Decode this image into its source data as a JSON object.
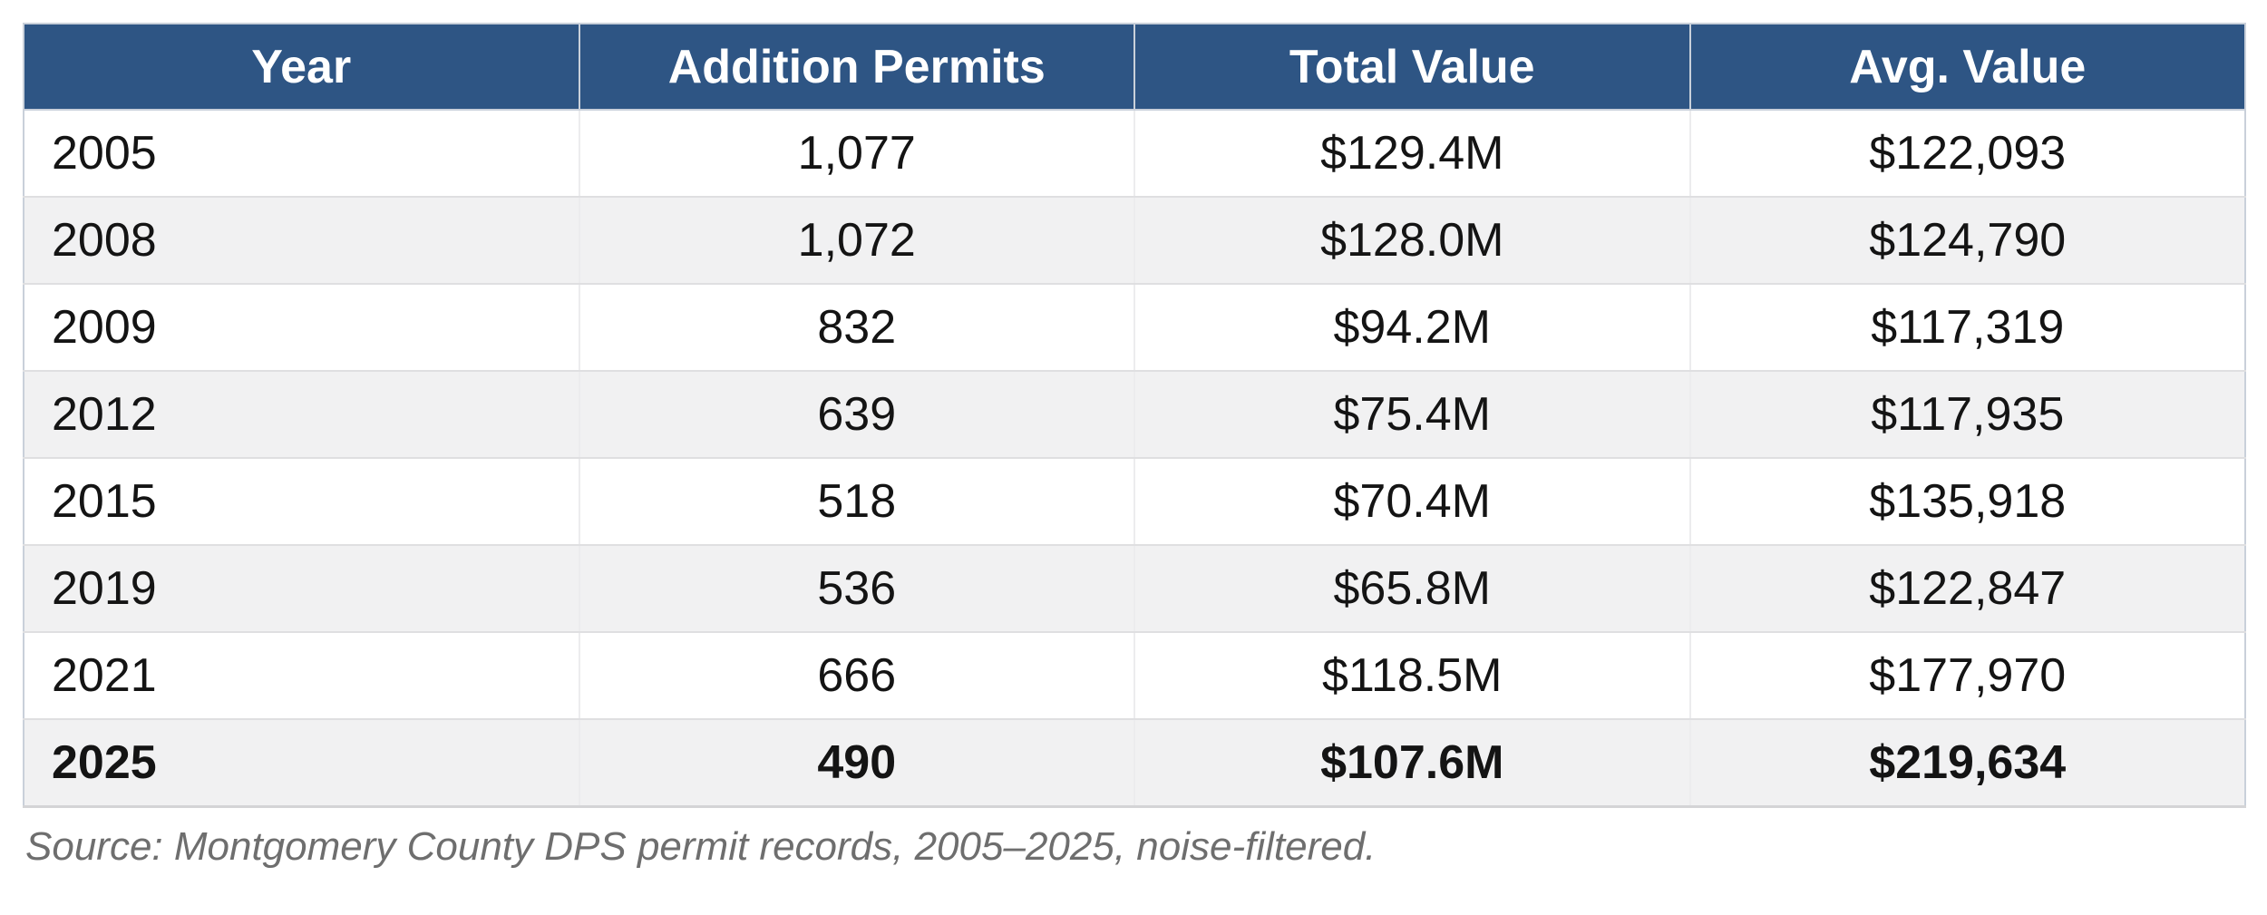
{
  "table": {
    "columns": [
      "Year",
      "Addition Permits",
      "Total Value",
      "Avg. Value"
    ],
    "rows": [
      {
        "cells": [
          "2005",
          "1,077",
          "$129.4M",
          "$122,093"
        ],
        "bold": false
      },
      {
        "cells": [
          "2008",
          "1,072",
          "$128.0M",
          "$124,790"
        ],
        "bold": false
      },
      {
        "cells": [
          "2009",
          "832",
          "$94.2M",
          "$117,319"
        ],
        "bold": false
      },
      {
        "cells": [
          "2012",
          "639",
          "$75.4M",
          "$117,935"
        ],
        "bold": false
      },
      {
        "cells": [
          "2015",
          "518",
          "$70.4M",
          "$135,918"
        ],
        "bold": false
      },
      {
        "cells": [
          "2019",
          "536",
          "$65.8M",
          "$122,847"
        ],
        "bold": false
      },
      {
        "cells": [
          "2021",
          "666",
          "$118.5M",
          "$177,970"
        ],
        "bold": false
      },
      {
        "cells": [
          "2025",
          "490",
          "$107.6M",
          "$219,634"
        ],
        "bold": true
      }
    ],
    "source_note": "Source: Montgomery County DPS permit records, 2005–2025, noise-filtered."
  },
  "colors": {
    "header_bg": "#2E5584",
    "header_text": "#FFFFFF",
    "row_bg": "#FFFFFF",
    "row_alt_bg": "#F1F1F2",
    "outer_border": "#C9D0DA",
    "row_line": "#DFDFE1",
    "column_line": "#ECECEE",
    "body_text": "#141414",
    "source_text": "#6E6E6E"
  },
  "chart_data": {
    "type": "table",
    "title": "",
    "columns": [
      "Year",
      "Addition Permits",
      "Total Value",
      "Avg. Value"
    ],
    "years": [
      2005,
      2008,
      2009,
      2012,
      2015,
      2019,
      2021,
      2025
    ],
    "series": [
      {
        "name": "Addition Permits",
        "values": [
          1077,
          1072,
          832,
          639,
          518,
          536,
          666,
          490
        ]
      },
      {
        "name": "Total Value ($M)",
        "values": [
          129.4,
          128.0,
          94.2,
          75.4,
          70.4,
          65.8,
          118.5,
          107.6
        ]
      },
      {
        "name": "Avg. Value ($)",
        "values": [
          122093,
          124790,
          117319,
          117935,
          135918,
          122847,
          177970,
          219634
        ]
      }
    ],
    "rows": [
      [
        "2005",
        "1,077",
        "$129.4M",
        "$122,093"
      ],
      [
        "2008",
        "1,072",
        "$128.0M",
        "$124,790"
      ],
      [
        "2009",
        "832",
        "$94.2M",
        "$117,319"
      ],
      [
        "2012",
        "639",
        "$75.4M",
        "$117,935"
      ],
      [
        "2015",
        "518",
        "$70.4M",
        "$135,918"
      ],
      [
        "2019",
        "536",
        "$65.8M",
        "$122,847"
      ],
      [
        "2021",
        "666",
        "$118.5M",
        "$177,970"
      ],
      [
        "2025",
        "490",
        "$107.6M",
        "$219,634"
      ]
    ],
    "emphasized_row": "2025",
    "layout_hints": {
      "header_style": "dark-blue",
      "striped": true,
      "grid": true
    },
    "annotations": [
      "Source: Montgomery County DPS permit records, 2005–2025, noise-filtered."
    ]
  }
}
